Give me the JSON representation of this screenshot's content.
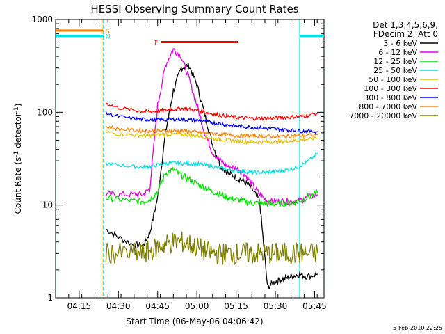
{
  "chart_data": {
    "type": "line",
    "title": "HESSI Observing Summary Count Rates",
    "xlabel": "Start Time (06-May-06 04:06:42)",
    "ylabel": "Count Rate (s⁻¹ detector⁻¹)",
    "ylabel_main": "Count Rate (s",
    "ylabel_sup1": "-1",
    "ylabel_mid": " detector",
    "ylabel_sup2": "-1",
    "ylabel_end": ")",
    "xlim": [
      4.1,
      5.81
    ],
    "ylim": [
      1,
      1000
    ],
    "yscale": "log",
    "x_unit": "hour of day (UT)",
    "x_ticks": [
      {
        "v": 4.25,
        "label": "04:15"
      },
      {
        "v": 4.5,
        "label": "04:30"
      },
      {
        "v": 4.75,
        "label": "04:45"
      },
      {
        "v": 5.0,
        "label": "05:00"
      },
      {
        "v": 5.25,
        "label": "05:15"
      },
      {
        "v": 5.5,
        "label": "05:30"
      },
      {
        "v": 5.75,
        "label": "05:45"
      }
    ],
    "y_ticks": [
      {
        "v": 1,
        "label": "1"
      },
      {
        "v": 10,
        "label": "10"
      },
      {
        "v": 100,
        "label": "100"
      },
      {
        "v": 1000,
        "label": "1000"
      }
    ],
    "legend": {
      "placement": "right",
      "header": [
        "Det 1,3,4,5,6,9,",
        "FDecim 2, Att 0"
      ]
    },
    "series": [
      {
        "name": "3 - 6 keV",
        "color": "#000000",
        "x": [
          4.42,
          4.5,
          4.6,
          4.66,
          4.7,
          4.75,
          4.8,
          4.85,
          4.9,
          4.95,
          5.0,
          5.05,
          5.1,
          5.15,
          5.2,
          5.25,
          5.3,
          5.35,
          5.4,
          5.45,
          5.5,
          5.55,
          5.6,
          5.65,
          5.7,
          5.77
        ],
        "y": [
          5.5,
          4.5,
          3.7,
          3.7,
          5,
          12,
          60,
          170,
          300,
          320,
          200,
          95,
          45,
          27,
          22,
          20,
          18,
          15,
          11,
          1.3,
          1.5,
          1.6,
          1.7,
          1.8,
          1.7,
          1.8
        ]
      },
      {
        "name": "6 - 12 keV",
        "color": "#e000e0",
        "x": [
          4.42,
          4.5,
          4.6,
          4.66,
          4.7,
          4.75,
          4.8,
          4.85,
          4.9,
          4.95,
          5.0,
          5.05,
          5.1,
          5.15,
          5.2,
          5.25,
          5.3,
          5.35,
          5.4,
          5.45,
          5.5,
          5.55,
          5.6,
          5.65,
          5.7,
          5.77
        ],
        "y": [
          13,
          13,
          13,
          13,
          15,
          120,
          320,
          480,
          400,
          230,
          120,
          60,
          37,
          30,
          26,
          25,
          22,
          17,
          13,
          11,
          11,
          11,
          11,
          11,
          12,
          13
        ]
      },
      {
        "name": "12 - 25 keV",
        "color": "#00e000",
        "x": [
          4.42,
          4.5,
          4.6,
          4.66,
          4.7,
          4.75,
          4.8,
          4.85,
          4.9,
          4.95,
          5.0,
          5.05,
          5.1,
          5.15,
          5.2,
          5.25,
          5.3,
          5.35,
          5.4,
          5.45,
          5.5,
          5.55,
          5.6,
          5.65,
          5.7,
          5.77
        ],
        "y": [
          12,
          11.5,
          11,
          11,
          11.5,
          14,
          22,
          24,
          21,
          19,
          17,
          15.5,
          14,
          13,
          12,
          11.5,
          11,
          10.5,
          10.5,
          10.3,
          10.3,
          10.4,
          10.6,
          11,
          12,
          13.5
        ]
      },
      {
        "name": "25 - 50 keV",
        "color": "#00e0e0",
        "x": [
          4.42,
          4.5,
          4.6,
          4.66,
          4.7,
          4.75,
          4.8,
          4.85,
          4.9,
          4.95,
          5.0,
          5.05,
          5.1,
          5.15,
          5.2,
          5.25,
          5.3,
          5.35,
          5.4,
          5.45,
          5.5,
          5.55,
          5.6,
          5.65,
          5.7,
          5.77
        ],
        "y": [
          28,
          27,
          26,
          25.5,
          26,
          27,
          28,
          28.5,
          28,
          28,
          28,
          27,
          26,
          25,
          24,
          23.5,
          23,
          22.5,
          22.5,
          22.5,
          23,
          23.5,
          24.5,
          26,
          29,
          36
        ]
      },
      {
        "name": "50 - 100 keV",
        "color": "#e0c000",
        "x": [
          4.42,
          4.5,
          4.6,
          4.66,
          4.7,
          4.75,
          4.8,
          4.85,
          4.9,
          4.95,
          5.0,
          5.05,
          5.1,
          5.15,
          5.2,
          5.25,
          5.3,
          5.35,
          5.4,
          5.45,
          5.5,
          5.55,
          5.6,
          5.65,
          5.7,
          5.77
        ],
        "y": [
          62,
          58,
          57,
          56,
          56,
          57,
          58,
          58,
          58,
          57,
          56,
          54,
          52,
          51,
          50,
          49,
          48,
          48,
          48,
          48,
          48,
          48.5,
          49,
          50,
          51,
          53
        ]
      },
      {
        "name": "100 - 300 keV",
        "color": "#ff0000",
        "x": [
          4.42,
          4.5,
          4.6,
          4.66,
          4.7,
          4.75,
          4.8,
          4.85,
          4.9,
          4.95,
          5.0,
          5.05,
          5.1,
          5.15,
          5.2,
          5.25,
          5.3,
          5.35,
          5.4,
          5.45,
          5.5,
          5.55,
          5.6,
          5.65,
          5.7,
          5.77
        ],
        "y": [
          125,
          112,
          105,
          102,
          102,
          103,
          105,
          108,
          110,
          108,
          105,
          100,
          96,
          93,
          90,
          88,
          87,
          86,
          86,
          86,
          87,
          88,
          89,
          90,
          92,
          98
        ]
      },
      {
        "name": "300 - 800 keV",
        "color": "#0000ff",
        "x": [
          4.42,
          4.5,
          4.6,
          4.66,
          4.7,
          4.75,
          4.8,
          4.85,
          4.9,
          4.95,
          5.0,
          5.05,
          5.1,
          5.15,
          5.2,
          5.25,
          5.3,
          5.35,
          5.4,
          5.45,
          5.5,
          5.55,
          5.6,
          5.65,
          5.7,
          5.77
        ],
        "y": [
          98,
          90,
          85,
          84,
          83,
          83,
          83,
          84,
          84,
          83,
          82,
          80,
          77,
          75,
          73,
          71,
          70,
          69,
          68,
          67,
          66,
          65,
          64,
          63,
          62.5,
          62
        ]
      },
      {
        "name": "800 - 7000 keV",
        "color": "#ff8000",
        "x": [
          4.42,
          4.5,
          4.6,
          4.66,
          4.7,
          4.75,
          4.8,
          4.85,
          4.9,
          4.95,
          5.0,
          5.05,
          5.1,
          5.15,
          5.2,
          5.25,
          5.3,
          5.35,
          5.4,
          5.45,
          5.5,
          5.55,
          5.6,
          5.65,
          5.7,
          5.77
        ],
        "y": [
          70,
          66,
          64,
          63,
          63,
          63,
          63,
          63,
          63,
          62,
          61,
          60,
          59,
          58,
          57,
          56,
          56,
          55.5,
          55,
          55,
          55,
          55,
          55.5,
          56,
          56,
          57
        ]
      },
      {
        "name": "7000 - 20000 keV",
        "color": "#808000",
        "x": [
          4.42,
          4.5,
          4.6,
          4.66,
          4.7,
          4.75,
          4.8,
          4.85,
          4.9,
          4.95,
          5.0,
          5.05,
          5.1,
          5.15,
          5.2,
          5.25,
          5.3,
          5.35,
          5.4,
          5.45,
          5.5,
          5.55,
          5.6,
          5.65,
          5.7,
          5.77
        ],
        "y": [
          3,
          3,
          3,
          3,
          3.2,
          3.5,
          3.8,
          4,
          4,
          3.8,
          3.5,
          3.2,
          3,
          3,
          3,
          3,
          3,
          3,
          3,
          3,
          3,
          3,
          3,
          3,
          3,
          3
        ]
      }
    ],
    "state_bars": [
      {
        "label": "S",
        "color": "#ff8000",
        "x0": 4.1,
        "x1": 4.405,
        "y": 760
      },
      {
        "label": "N",
        "color": "#00e0e0",
        "x0": 4.1,
        "x1": 4.405,
        "y": 665
      },
      {
        "label": "",
        "color": "#00e0e0",
        "x0": 5.655,
        "x1": 5.81,
        "y": 665
      },
      {
        "label": "F",
        "color": "#ff0000",
        "x0": 4.77,
        "x1": 5.265,
        "y": 570
      }
    ],
    "vlines": [
      {
        "x": 4.405,
        "color": "#00e0e0",
        "style": "dashed"
      },
      {
        "x": 4.395,
        "color": "#ff8000",
        "style": "dashed"
      },
      {
        "x": 5.655,
        "color": "#00e0e0",
        "style": "solid"
      },
      {
        "x": 5.81,
        "color": "#00e0e0",
        "style": "dashed"
      },
      {
        "x": 4.1,
        "color": "#00e0e0",
        "style": "solid"
      }
    ],
    "timestamp": "5-Feb-2010 22:25"
  }
}
